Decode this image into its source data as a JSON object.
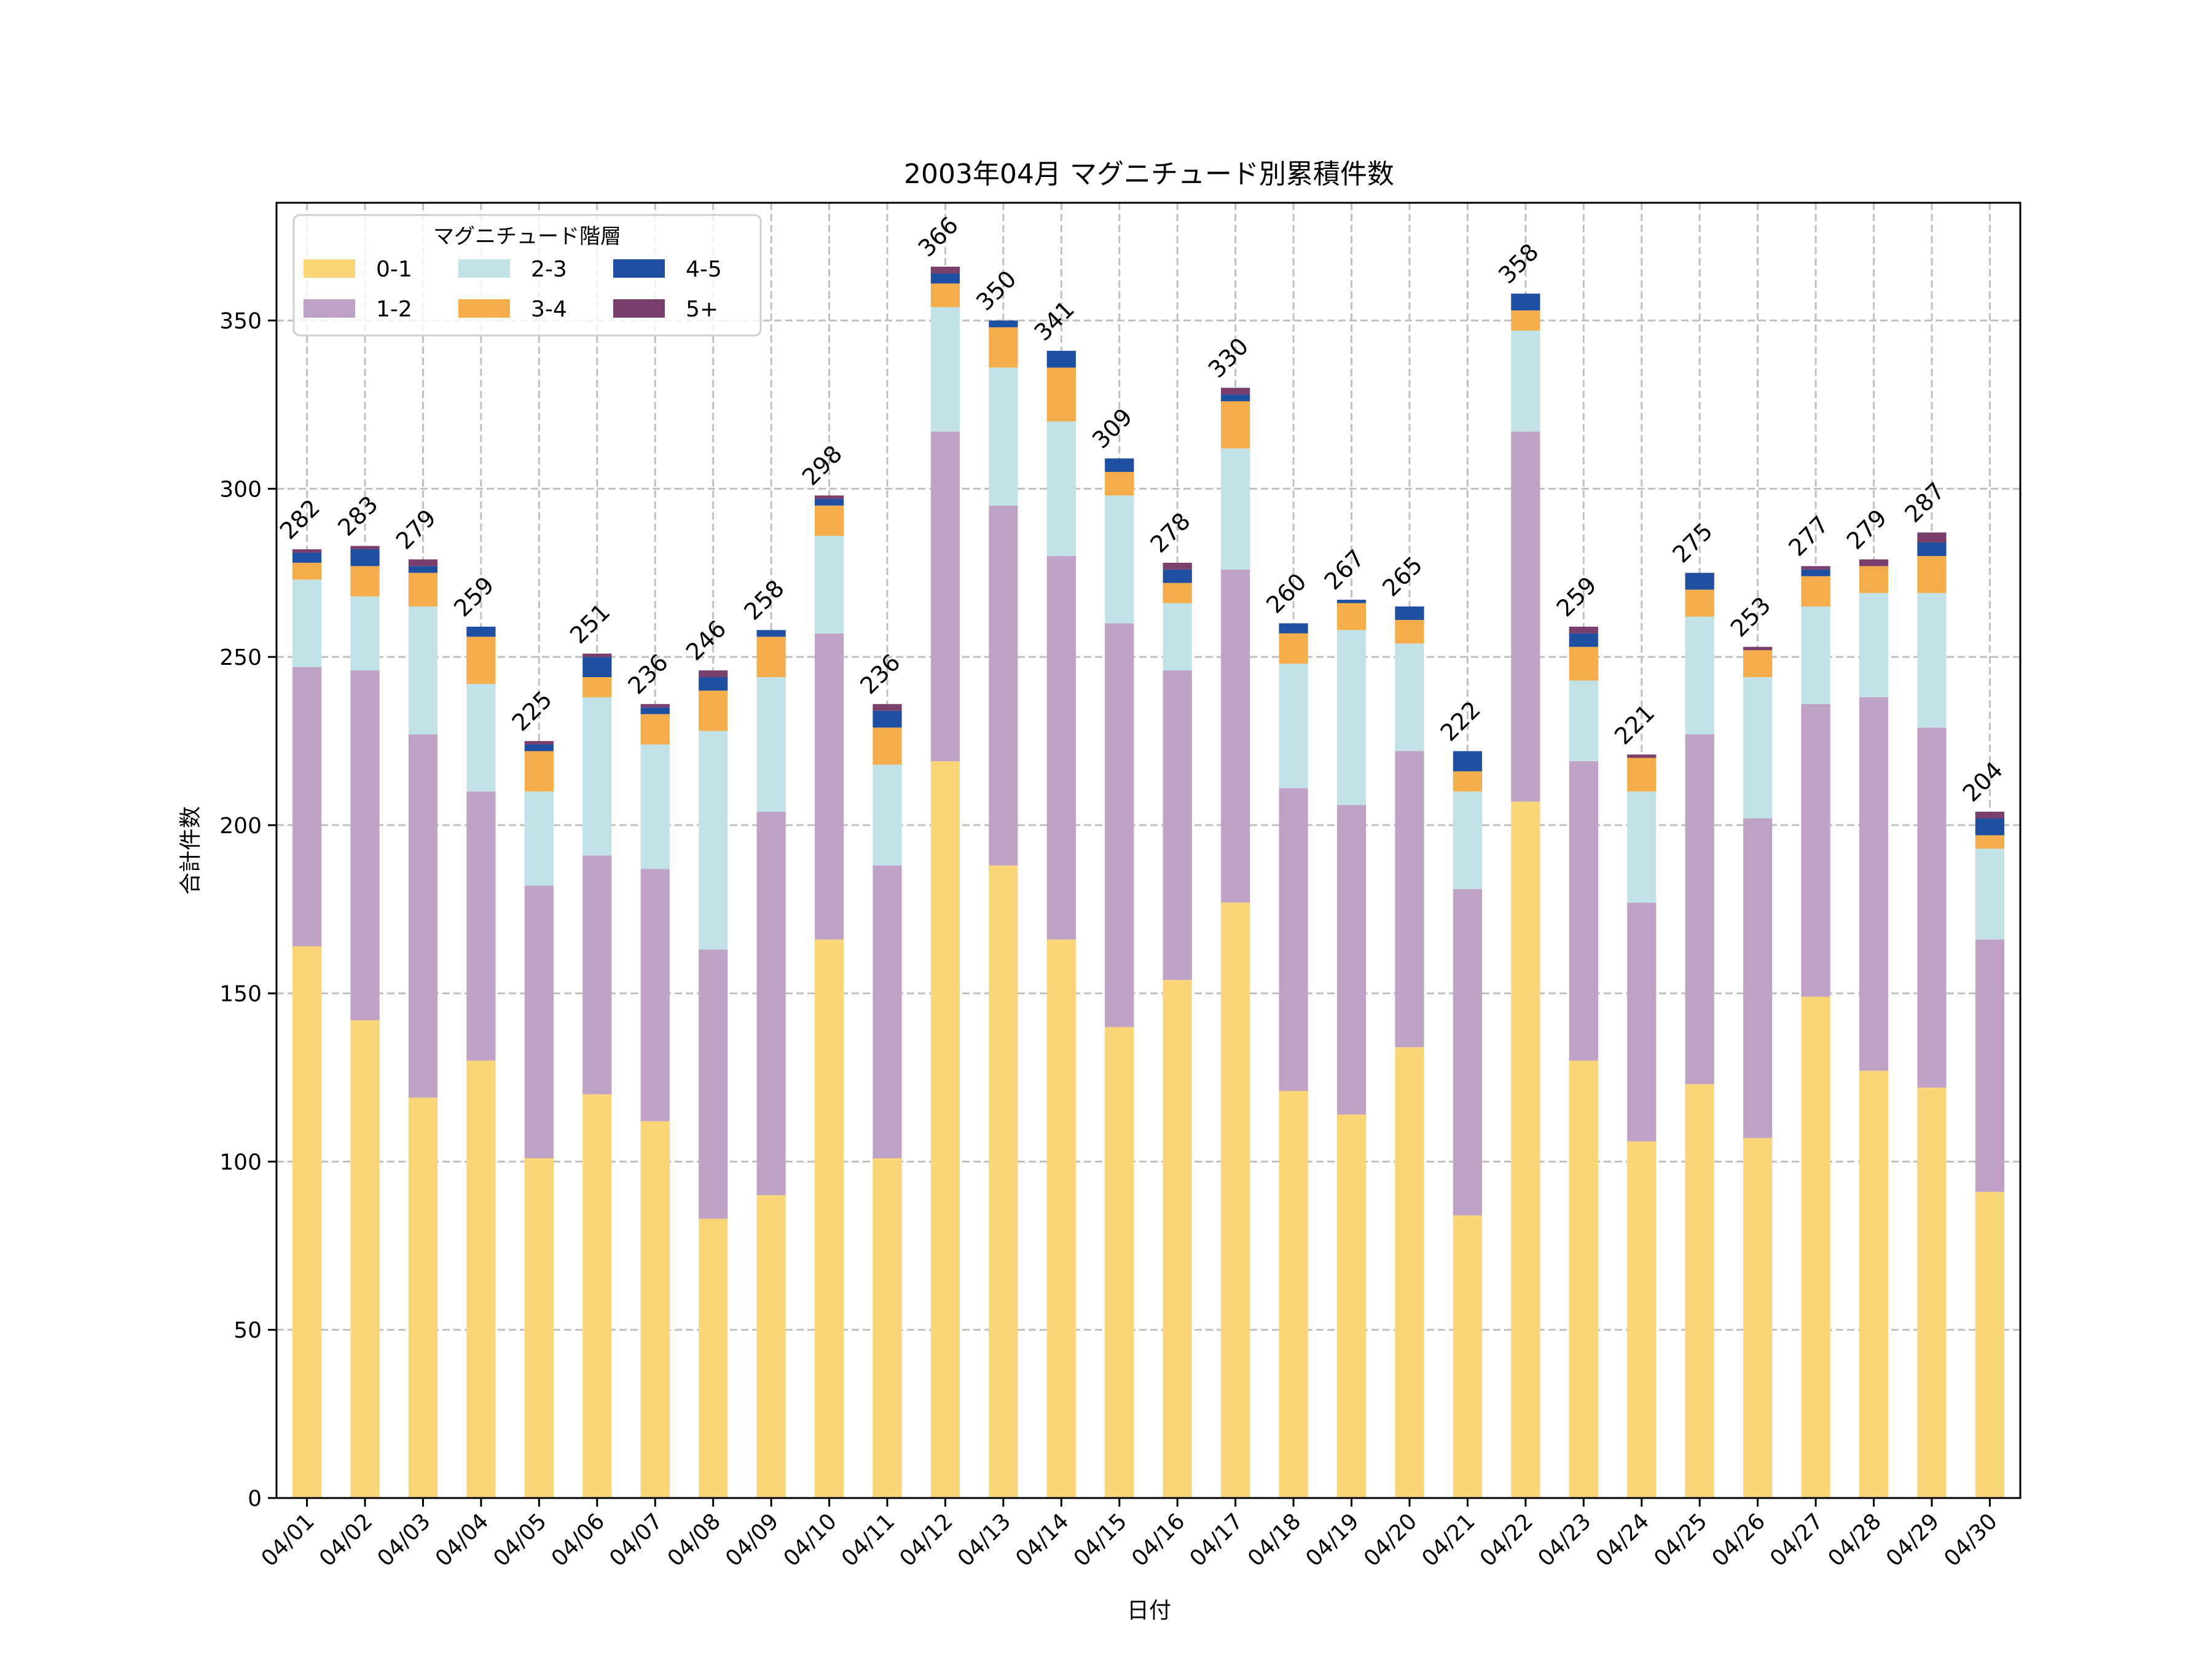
{
  "chart_data": {
    "type": "bar",
    "stacked": true,
    "title": "2003年04月 マグニチュード別累積件数",
    "xlabel": "日付",
    "ylabel": "合計件数",
    "ylim": [
      0,
      385
    ],
    "yticks": [
      0,
      50,
      100,
      150,
      200,
      250,
      300,
      350
    ],
    "grid": true,
    "legend": {
      "title": "マグニチュード階層",
      "placement": "top-left",
      "columns": 3
    },
    "categories": [
      "04/01",
      "04/02",
      "04/03",
      "04/04",
      "04/05",
      "04/06",
      "04/07",
      "04/08",
      "04/09",
      "04/10",
      "04/11",
      "04/12",
      "04/13",
      "04/14",
      "04/15",
      "04/16",
      "04/17",
      "04/18",
      "04/19",
      "04/20",
      "04/21",
      "04/22",
      "04/23",
      "04/24",
      "04/25",
      "04/26",
      "04/27",
      "04/28",
      "04/29",
      "04/30"
    ],
    "series": [
      {
        "name": "0-1",
        "color": "#FBD679",
        "values": [
          164,
          142,
          119,
          130,
          101,
          120,
          112,
          83,
          90,
          166,
          101,
          219,
          188,
          166,
          140,
          154,
          177,
          121,
          114,
          134,
          84,
          207,
          130,
          106,
          123,
          107,
          149,
          127,
          122,
          91
        ]
      },
      {
        "name": "1-2",
        "color": "#BFA2C6",
        "values": [
          83,
          104,
          108,
          80,
          81,
          71,
          75,
          80,
          114,
          91,
          87,
          98,
          107,
          114,
          120,
          92,
          99,
          90,
          92,
          88,
          97,
          110,
          89,
          71,
          104,
          95,
          87,
          111,
          107,
          75
        ]
      },
      {
        "name": "2-3",
        "color": "#C1E3E7",
        "values": [
          26,
          22,
          38,
          32,
          28,
          47,
          37,
          65,
          40,
          29,
          30,
          37,
          41,
          40,
          38,
          20,
          36,
          37,
          52,
          32,
          29,
          30,
          24,
          33,
          35,
          42,
          29,
          31,
          40,
          27
        ]
      },
      {
        "name": "3-4",
        "color": "#F5AC4A",
        "values": [
          5,
          9,
          10,
          14,
          12,
          6,
          9,
          12,
          12,
          9,
          11,
          7,
          12,
          16,
          7,
          6,
          14,
          9,
          8,
          7,
          6,
          6,
          10,
          10,
          8,
          8,
          9,
          8,
          11,
          4
        ]
      },
      {
        "name": "4-5",
        "color": "#1F4FA1",
        "values": [
          3,
          5,
          2,
          3,
          2,
          6,
          2,
          4,
          2,
          2,
          5,
          3,
          2,
          5,
          4,
          4,
          2,
          3,
          1,
          4,
          6,
          5,
          4,
          0,
          5,
          0,
          2,
          0,
          4,
          5
        ]
      },
      {
        "name": "5+",
        "color": "#7B3F6E",
        "values": [
          1,
          1,
          2,
          0,
          1,
          1,
          1,
          2,
          0,
          1,
          2,
          2,
          0,
          0,
          0,
          2,
          2,
          0,
          0,
          0,
          0,
          0,
          2,
          1,
          0,
          1,
          1,
          2,
          3,
          2
        ]
      }
    ],
    "totals": [
      282,
      283,
      279,
      259,
      225,
      251,
      236,
      246,
      258,
      298,
      236,
      366,
      350,
      341,
      309,
      278,
      330,
      260,
      267,
      265,
      222,
      358,
      259,
      221,
      275,
      253,
      277,
      279,
      287,
      204
    ]
  }
}
